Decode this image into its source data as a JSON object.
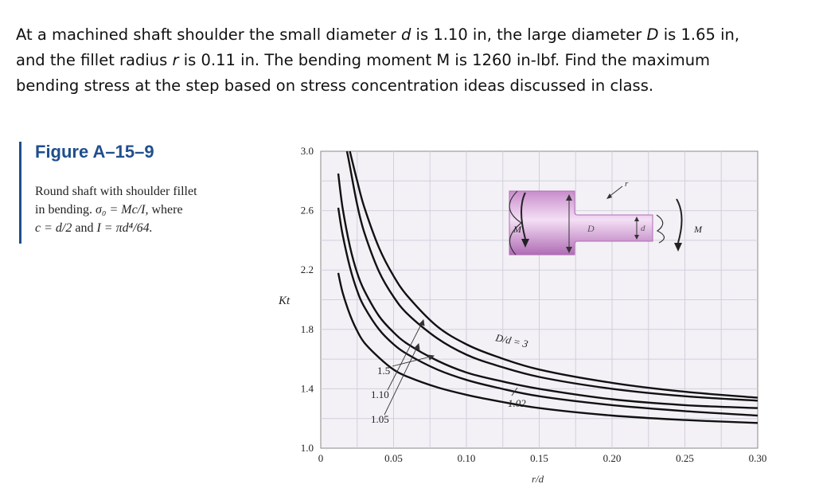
{
  "problem": {
    "p1": "At a machined shaft shoulder the small diameter ",
    "d_sym": "d",
    "p2": " is 1.10 in, the large diameter ",
    "D_sym": "D",
    "p3": " is 1.65 in,",
    "p4": "and the fillet radius ",
    "r_sym": "r",
    "p5": " is 0.11 in. The bending moment M is 1260 in-lbf. Find the maximum",
    "p6": "bending stress at the step based on stress concentration ideas discussed in class."
  },
  "figure": {
    "title": "Figure A–15–9",
    "caption_line1": "Round shaft with shoulder fillet",
    "caption_line2a": "in bending. ",
    "caption_formula1": "σ₀ = Mc/I,",
    "caption_line2b": " where",
    "caption_formula2": "c = d/2",
    "caption_line3a": " and ",
    "caption_formula3": "I = πd⁴/64.",
    "diagram_labels": {
      "M_left": "M",
      "D": "D",
      "d": "d",
      "r": "r",
      "M_right": "M"
    }
  },
  "chart_data": {
    "type": "line",
    "title": "",
    "xlabel": "r/d",
    "ylabel": "Kt",
    "xlim": [
      0,
      0.3
    ],
    "ylim": [
      1.0,
      3.0
    ],
    "x_ticks": [
      0,
      0.05,
      0.1,
      0.15,
      0.2,
      0.25,
      0.3
    ],
    "x_tick_labels": [
      "0",
      "0.05",
      "0.10",
      "0.15",
      "0.20",
      "0.25",
      "0.30"
    ],
    "y_ticks": [
      1.0,
      1.4,
      1.8,
      2.2,
      2.6,
      3.0
    ],
    "y_tick_labels": [
      "1.0",
      "1.4",
      "1.8",
      "2.2",
      "2.6",
      "3.0"
    ],
    "grid": true,
    "series_labels": [
      "D/d = 3",
      "1.5",
      "1.10",
      "1.05",
      "1.02"
    ],
    "series": [
      {
        "name": "D/d = 3",
        "x": [
          0.02,
          0.025,
          0.03,
          0.04,
          0.05,
          0.06,
          0.08,
          0.1,
          0.12,
          0.15,
          0.2,
          0.25,
          0.3
        ],
        "y": [
          3.0,
          2.8,
          2.62,
          2.35,
          2.16,
          2.02,
          1.82,
          1.7,
          1.62,
          1.53,
          1.44,
          1.38,
          1.34
        ]
      },
      {
        "name": "1.5",
        "x": [
          0.018,
          0.02,
          0.025,
          0.03,
          0.04,
          0.05,
          0.06,
          0.08,
          0.1,
          0.12,
          0.15,
          0.2,
          0.25,
          0.3
        ],
        "y": [
          3.0,
          2.9,
          2.64,
          2.45,
          2.19,
          2.02,
          1.9,
          1.74,
          1.63,
          1.56,
          1.48,
          1.4,
          1.35,
          1.32
        ]
      },
      {
        "name": "1.10",
        "x": [
          0.012,
          0.015,
          0.02,
          0.025,
          0.03,
          0.04,
          0.05,
          0.06,
          0.08,
          0.1,
          0.12,
          0.15,
          0.2,
          0.25,
          0.3
        ],
        "y": [
          2.85,
          2.62,
          2.36,
          2.18,
          2.06,
          1.89,
          1.78,
          1.7,
          1.59,
          1.51,
          1.46,
          1.4,
          1.33,
          1.29,
          1.27
        ]
      },
      {
        "name": "1.05",
        "x": [
          0.012,
          0.015,
          0.02,
          0.025,
          0.03,
          0.04,
          0.05,
          0.06,
          0.08,
          0.1,
          0.12,
          0.15,
          0.2,
          0.25,
          0.3
        ],
        "y": [
          2.62,
          2.44,
          2.22,
          2.06,
          1.95,
          1.8,
          1.7,
          1.63,
          1.53,
          1.46,
          1.41,
          1.35,
          1.29,
          1.25,
          1.22
        ]
      },
      {
        "name": "1.02",
        "x": [
          0.012,
          0.015,
          0.02,
          0.025,
          0.03,
          0.04,
          0.05,
          0.06,
          0.08,
          0.1,
          0.12,
          0.15,
          0.2,
          0.25,
          0.3
        ],
        "y": [
          2.18,
          2.05,
          1.9,
          1.79,
          1.71,
          1.61,
          1.53,
          1.48,
          1.41,
          1.36,
          1.32,
          1.27,
          1.22,
          1.19,
          1.17
        ]
      }
    ]
  }
}
